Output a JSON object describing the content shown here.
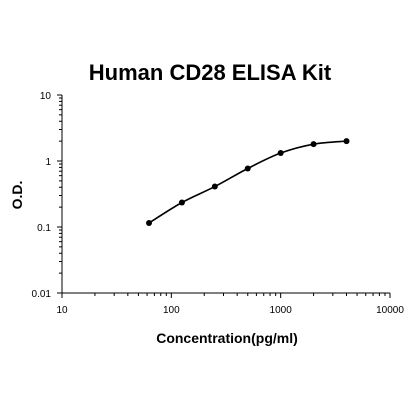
{
  "chart_data": {
    "type": "scatter",
    "title": "Human CD28 ELISA Kit",
    "xlabel": "Concentration(pg/ml)",
    "ylabel": "O.D.",
    "xscale": "log",
    "yscale": "log",
    "xlim": [
      10,
      10000
    ],
    "ylim": [
      0.01,
      10
    ],
    "x_ticks": [
      "10",
      "100",
      "1000",
      "10000"
    ],
    "y_ticks": [
      "0.01",
      "0.1",
      "1",
      "10"
    ],
    "grid": false,
    "legend": "none",
    "series": [
      {
        "x": [
          62.5,
          125,
          250,
          500,
          1000,
          2000,
          4000
        ],
        "y": [
          0.115,
          0.235,
          0.41,
          0.77,
          1.32,
          1.8,
          2.0
        ],
        "fit_curve": true,
        "color": "#000000"
      }
    ]
  }
}
